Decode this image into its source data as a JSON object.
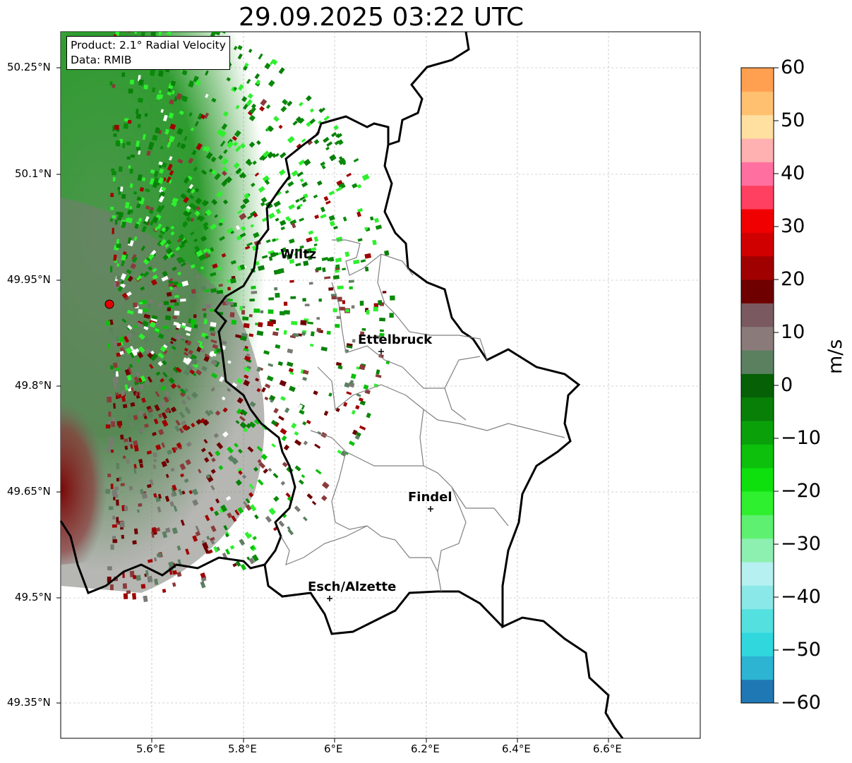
{
  "title": "29.09.2025 03:22 UTC",
  "info": {
    "product": "Product: 2.1° Radial Velocity",
    "data": "Data: RMIB"
  },
  "lat_ticks": [
    "50.25°N",
    "50.1°N",
    "49.95°N",
    "49.8°N",
    "49.65°N",
    "49.5°N",
    "49.35°N"
  ],
  "lon_ticks": [
    "5.6°E",
    "5.8°E",
    "6°E",
    "6.2°E",
    "6.4°E",
    "6.6°E"
  ],
  "cities": [
    {
      "name": "Wiltz"
    },
    {
      "name": "Ettelbruck"
    },
    {
      "name": "Findel"
    },
    {
      "name": "Esch/Alzette"
    }
  ],
  "colorbar": {
    "label": "m/s",
    "ticks": [
      "60",
      "50",
      "40",
      "30",
      "20",
      "10",
      "0",
      "−10",
      "−20",
      "−30",
      "−40",
      "−50",
      "−60"
    ],
    "range": [
      -60,
      60
    ],
    "colors": [
      "#1f78b4",
      "#2cb4d2",
      "#30d8de",
      "#55e0e0",
      "#8ae8e8",
      "#b6f0f0",
      "#8ef0b0",
      "#5ef070",
      "#2ef02e",
      "#0ee00e",
      "#0cc00c",
      "#0aa00a",
      "#088008",
      "#066006",
      "#5a8060",
      "#8a7a7a",
      "#7a5a60",
      "#6e0000",
      "#a00000",
      "#d00000",
      "#f00000",
      "#ff4060",
      "#ff70a0",
      "#ffb0b0",
      "#ffe0a0",
      "#ffc070",
      "#ffa050"
    ]
  },
  "radar": {
    "name": "radar-site",
    "color": "#e00000"
  }
}
